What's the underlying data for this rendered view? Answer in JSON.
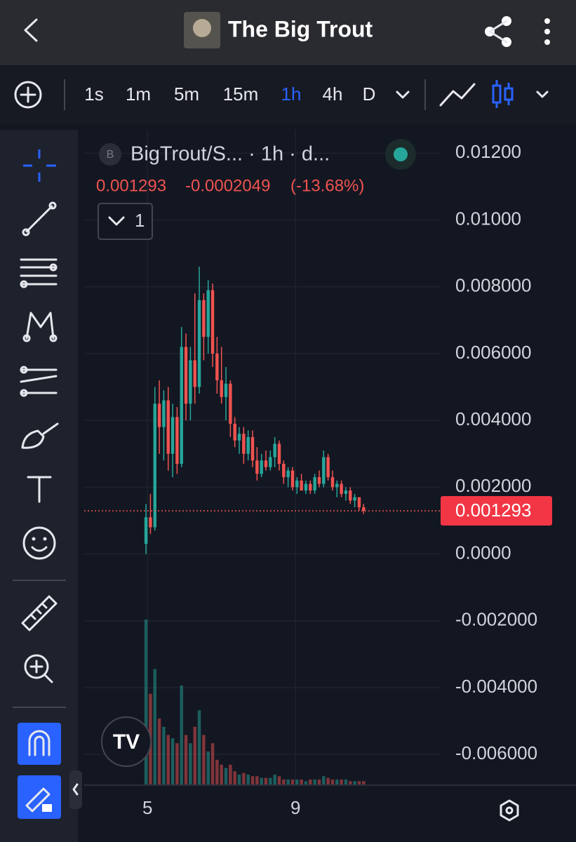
{
  "header": {
    "title": "The Big Trout"
  },
  "timeframes": [
    "1s",
    "1m",
    "5m",
    "15m",
    "1h",
    "4h",
    "D"
  ],
  "chart_data": {
    "type": "candlestick",
    "title": "BigTrout/S... · 1h · d...",
    "last_value": {
      "value": 0.001293,
      "label": "0.001293"
    },
    "change": {
      "value": -0.0002049,
      "label": "-0.0002049"
    },
    "change_pct": {
      "value": -13.68,
      "label": "(-13.68%)"
    },
    "study_count": 1,
    "up_color": "#26a69a",
    "down_color": "#ef5350",
    "grid": true,
    "xlim": [
      3.29,
      12.92
    ],
    "xticks": [
      5,
      9
    ],
    "ylim": [
      -0.0069,
      0.0127
    ],
    "yticks": [
      {
        "value": 0.012,
        "label": "0.01200"
      },
      {
        "value": 0.01,
        "label": "0.01000"
      },
      {
        "value": 0.008,
        "label": "0.008000"
      },
      {
        "value": 0.006,
        "label": "0.006000"
      },
      {
        "value": 0.004,
        "label": "0.004000"
      },
      {
        "value": 0.002,
        "label": "0.002000"
      },
      {
        "value": 0,
        "label": "0.0000"
      },
      {
        "value": -0.002,
        "label": "-0.002000"
      },
      {
        "value": -0.004,
        "label": "-0.004000"
      },
      {
        "value": -0.006,
        "label": "-0.006000"
      }
    ],
    "x": [
      4.96,
      5.08,
      5.2,
      5.32,
      5.44,
      5.56,
      5.68,
      5.8,
      5.92,
      6.04,
      6.16,
      6.28,
      6.4,
      6.52,
      6.64,
      6.76,
      6.88,
      7.0,
      7.12,
      7.24,
      7.36,
      7.48,
      7.6,
      7.72,
      7.84,
      7.96,
      8.08,
      8.2,
      8.32,
      8.44,
      8.56,
      8.68,
      8.8,
      8.92,
      9.04,
      9.16,
      9.28,
      9.4,
      9.52,
      9.64,
      9.76,
      9.88,
      10.0,
      10.12,
      10.24,
      10.36,
      10.48,
      10.6,
      10.72,
      10.84
    ],
    "open": [
      0.0003,
      0.0011,
      0.0008,
      0.0045,
      0.0038,
      0.0046,
      0.003,
      0.0041,
      0.0027,
      0.0062,
      0.0045,
      0.0058,
      0.005,
      0.0076,
      0.0065,
      0.0079,
      0.006,
      0.0052,
      0.0047,
      0.0051,
      0.0039,
      0.0034,
      0.0036,
      0.003,
      0.0035,
      0.0028,
      0.0024,
      0.0028,
      0.0026,
      0.0029,
      0.0033,
      0.0027,
      0.0023,
      0.0025,
      0.002,
      0.0022,
      0.0019,
      0.0021,
      0.0019,
      0.0023,
      0.0021,
      0.0029,
      0.0023,
      0.002,
      0.0021,
      0.0018,
      0.0019,
      0.0016,
      0.0017,
      0.0014
    ],
    "high": [
      0.0015,
      0.0018,
      0.005,
      0.0052,
      0.0049,
      0.005,
      0.0045,
      0.0044,
      0.0068,
      0.0066,
      0.0062,
      0.0078,
      0.0086,
      0.0078,
      0.0082,
      0.0081,
      0.0065,
      0.0062,
      0.0056,
      0.0052,
      0.0041,
      0.0038,
      0.0038,
      0.0037,
      0.0037,
      0.0032,
      0.003,
      0.0031,
      0.0031,
      0.0035,
      0.0034,
      0.0028,
      0.0026,
      0.0026,
      0.0023,
      0.0024,
      0.0022,
      0.0022,
      0.0024,
      0.0025,
      0.0031,
      0.003,
      0.0025,
      0.0022,
      0.0022,
      0.002,
      0.002,
      0.0018,
      0.0017,
      0.0015
    ],
    "low": [
      0.0,
      0.0006,
      0.0007,
      0.003,
      0.0028,
      0.0025,
      0.0023,
      0.0024,
      0.0026,
      0.004,
      0.004,
      0.0045,
      0.0048,
      0.0058,
      0.006,
      0.0056,
      0.0048,
      0.0045,
      0.004,
      0.0035,
      0.0032,
      0.003,
      0.0027,
      0.0028,
      0.0026,
      0.0022,
      0.0023,
      0.0025,
      0.0025,
      0.0026,
      0.0025,
      0.0021,
      0.002,
      0.0019,
      0.0018,
      0.0019,
      0.0018,
      0.0018,
      0.0018,
      0.002,
      0.002,
      0.0022,
      0.0019,
      0.0017,
      0.0017,
      0.0016,
      0.0015,
      0.0014,
      0.0013,
      0.0012
    ],
    "close": [
      0.0011,
      0.0008,
      0.0045,
      0.0038,
      0.0046,
      0.003,
      0.0041,
      0.0027,
      0.0062,
      0.0045,
      0.0058,
      0.005,
      0.0076,
      0.0065,
      0.0079,
      0.006,
      0.0052,
      0.0047,
      0.0051,
      0.0039,
      0.0034,
      0.0036,
      0.003,
      0.0035,
      0.0028,
      0.0024,
      0.0028,
      0.0026,
      0.0029,
      0.0033,
      0.0027,
      0.0023,
      0.0025,
      0.002,
      0.0022,
      0.0019,
      0.0021,
      0.0019,
      0.0023,
      0.0021,
      0.0029,
      0.0023,
      0.002,
      0.0021,
      0.0018,
      0.0019,
      0.0016,
      0.0017,
      0.0014,
      0.001293
    ],
    "volume": [
      100,
      55,
      70,
      40,
      35,
      30,
      28,
      25,
      60,
      30,
      25,
      35,
      45,
      30,
      20,
      25,
      15,
      12,
      10,
      12,
      8,
      6,
      7,
      6,
      5,
      5,
      4,
      4,
      4,
      6,
      5,
      3,
      3,
      3,
      3,
      3,
      2,
      3,
      3,
      3,
      5,
      4,
      3,
      3,
      3,
      3,
      2,
      2,
      2,
      2
    ]
  }
}
